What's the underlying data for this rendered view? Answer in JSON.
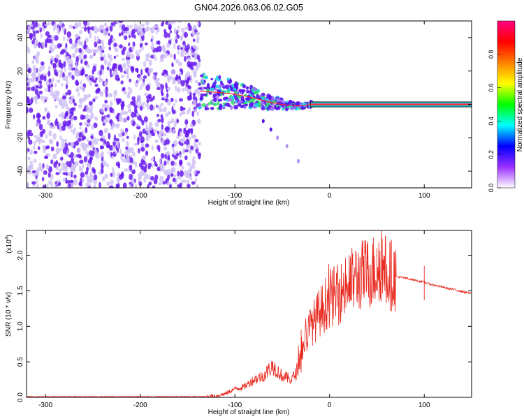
{
  "title": "GN04.2026.063.06.02.G05",
  "chart_data": [
    {
      "type": "heatmap",
      "xlabel": "Height of straight line (km)",
      "ylabel": "Frequency (Hz)",
      "xlim": [
        -320,
        150
      ],
      "ylim": [
        -50,
        50
      ],
      "x_ticks": [
        -300,
        -200,
        -100,
        0,
        100
      ],
      "y_ticks": [
        -40,
        -20,
        0,
        20,
        40
      ],
      "noise_region_x": [
        -320,
        -137
      ],
      "signal_trace": {
        "x": [
          -137,
          -125,
          -115,
          -105,
          -95,
          -85,
          -75,
          -65,
          -55,
          -45,
          -35,
          -25,
          -18,
          -10,
          0,
          20,
          60,
          100,
          150
        ],
        "y": [
          8,
          7.5,
          7,
          6.5,
          5.5,
          4.5,
          3,
          1.5,
          0.5,
          -0.5,
          -1,
          -0.5,
          0,
          0,
          0,
          0,
          0,
          0,
          0
        ]
      },
      "tail_points": {
        "x": [
          -70,
          -62,
          -55,
          -45,
          -33
        ],
        "y": [
          -10,
          -15,
          -20,
          -25,
          -34
        ]
      },
      "colorbar": {
        "label": "Normalized spectral amplitude",
        "range": [
          0,
          1
        ],
        "ticks": [
          "0.0",
          "0.2",
          "0.4",
          "0.6",
          "0.8"
        ],
        "tick_values": [
          0.0,
          0.2,
          0.4,
          0.6,
          0.8
        ],
        "colors": [
          "#ffffff",
          "#9b30ff",
          "#0000ff",
          "#00ffff",
          "#00ff00",
          "#ffff00",
          "#ff8000",
          "#ff0000",
          "#ff0080"
        ]
      },
      "colors": {
        "noise": "#6a1cf0",
        "noise_light": "#cfc0f5",
        "signal_line": "#ff2a2a"
      }
    },
    {
      "type": "line",
      "xlabel": "Height of straight line (km)",
      "ylabel": "SNR (10 * v/v)",
      "y_multiplier": "(x10",
      "y_multiplier_exp": "4",
      "y_multiplier_close": ")",
      "xlim": [
        -320,
        150
      ],
      "ylim": [
        0,
        2.35
      ],
      "x_ticks": [
        -300,
        -200,
        -100,
        0,
        100
      ],
      "y_ticks": [
        "0.0",
        "0.5",
        "1.0",
        "1.5",
        "2.0"
      ],
      "y_tick_values": [
        0,
        0.5,
        1.0,
        1.5,
        2.0
      ],
      "color": "#e8281e",
      "series": [
        {
          "x": [
            -320,
            -200,
            -130,
            -120,
            -110,
            -100,
            -90,
            -80,
            -70,
            -60,
            -50,
            -40,
            -35,
            -30,
            -25,
            -20,
            -10,
            0,
            10,
            20,
            30,
            40,
            50,
            55,
            60,
            70,
            80,
            90,
            100,
            110,
            120,
            130,
            140,
            150
          ],
          "values": [
            0.01,
            0.01,
            0.01,
            0.02,
            0.05,
            0.12,
            0.15,
            0.25,
            0.3,
            0.45,
            0.3,
            0.25,
            0.35,
            0.6,
            0.85,
            1.0,
            1.2,
            1.4,
            1.45,
            1.6,
            1.7,
            1.75,
            1.8,
            1.9,
            1.75,
            1.7,
            1.68,
            1.65,
            1.62,
            1.58,
            1.55,
            1.52,
            1.49,
            1.46
          ]
        }
      ]
    }
  ]
}
